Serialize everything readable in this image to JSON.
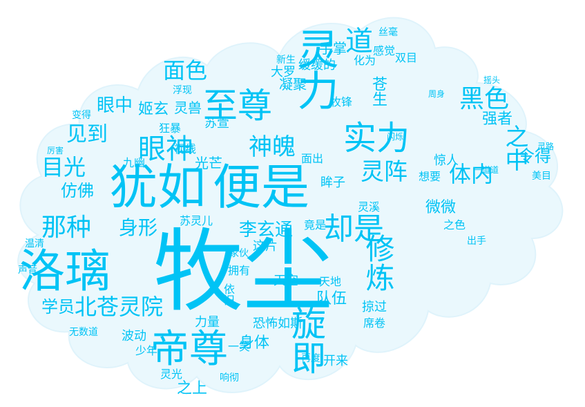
{
  "palette": {
    "primary": "#00c3f5",
    "secondary": "#1fb6e6",
    "background": "#ffffff",
    "cloud_shape": "#eaf8fd"
  },
  "words": [
    "牧尘",
    "犹如",
    "便是",
    "洛璃",
    "灵力",
    "帝尊",
    "至尊",
    "实力",
    "旋即",
    "却是",
    "修炼",
    "眼神",
    "那种",
    "北苍灵院",
    "灵阵",
    "目光",
    "之中",
    "黑色",
    "神魄",
    "见到",
    "面色",
    "道",
    "体内",
    "身形",
    "学员",
    "仿佛",
    "李玄通",
    "身体",
    "令得",
    "队伍",
    "眼中",
    "姬玄",
    "苍生",
    "凝聚",
    "缓缓的",
    "灵兽",
    "苏萱",
    "视线",
    "光芒",
    "手掌",
    "强者",
    "惊人",
    "双目",
    "丝毫",
    "感觉",
    "大罗",
    "这片",
    "天空",
    "微微",
    "掠过",
    "席卷",
    "开来",
    "无数道",
    "之上",
    "响彻",
    "灵光",
    "恐怖如斯",
    "苏灵儿",
    "温清",
    "家伙",
    "依旧",
    "力量",
    "波动",
    "少年",
    "狂暴",
    "面出",
    "拥有",
    "竟是",
    "想要",
    "出手",
    "灵溪",
    "一笑",
    "声音",
    "厉害",
    "美目",
    "九幽",
    "天地",
    "再度",
    "化为",
    "新生",
    "眸子",
    "牧锋",
    "浮现",
    "变得",
    "闪烁",
    "灵路",
    "之色",
    "周身",
    "摇头",
    "一道道"
  ],
  "header_note": ""
}
